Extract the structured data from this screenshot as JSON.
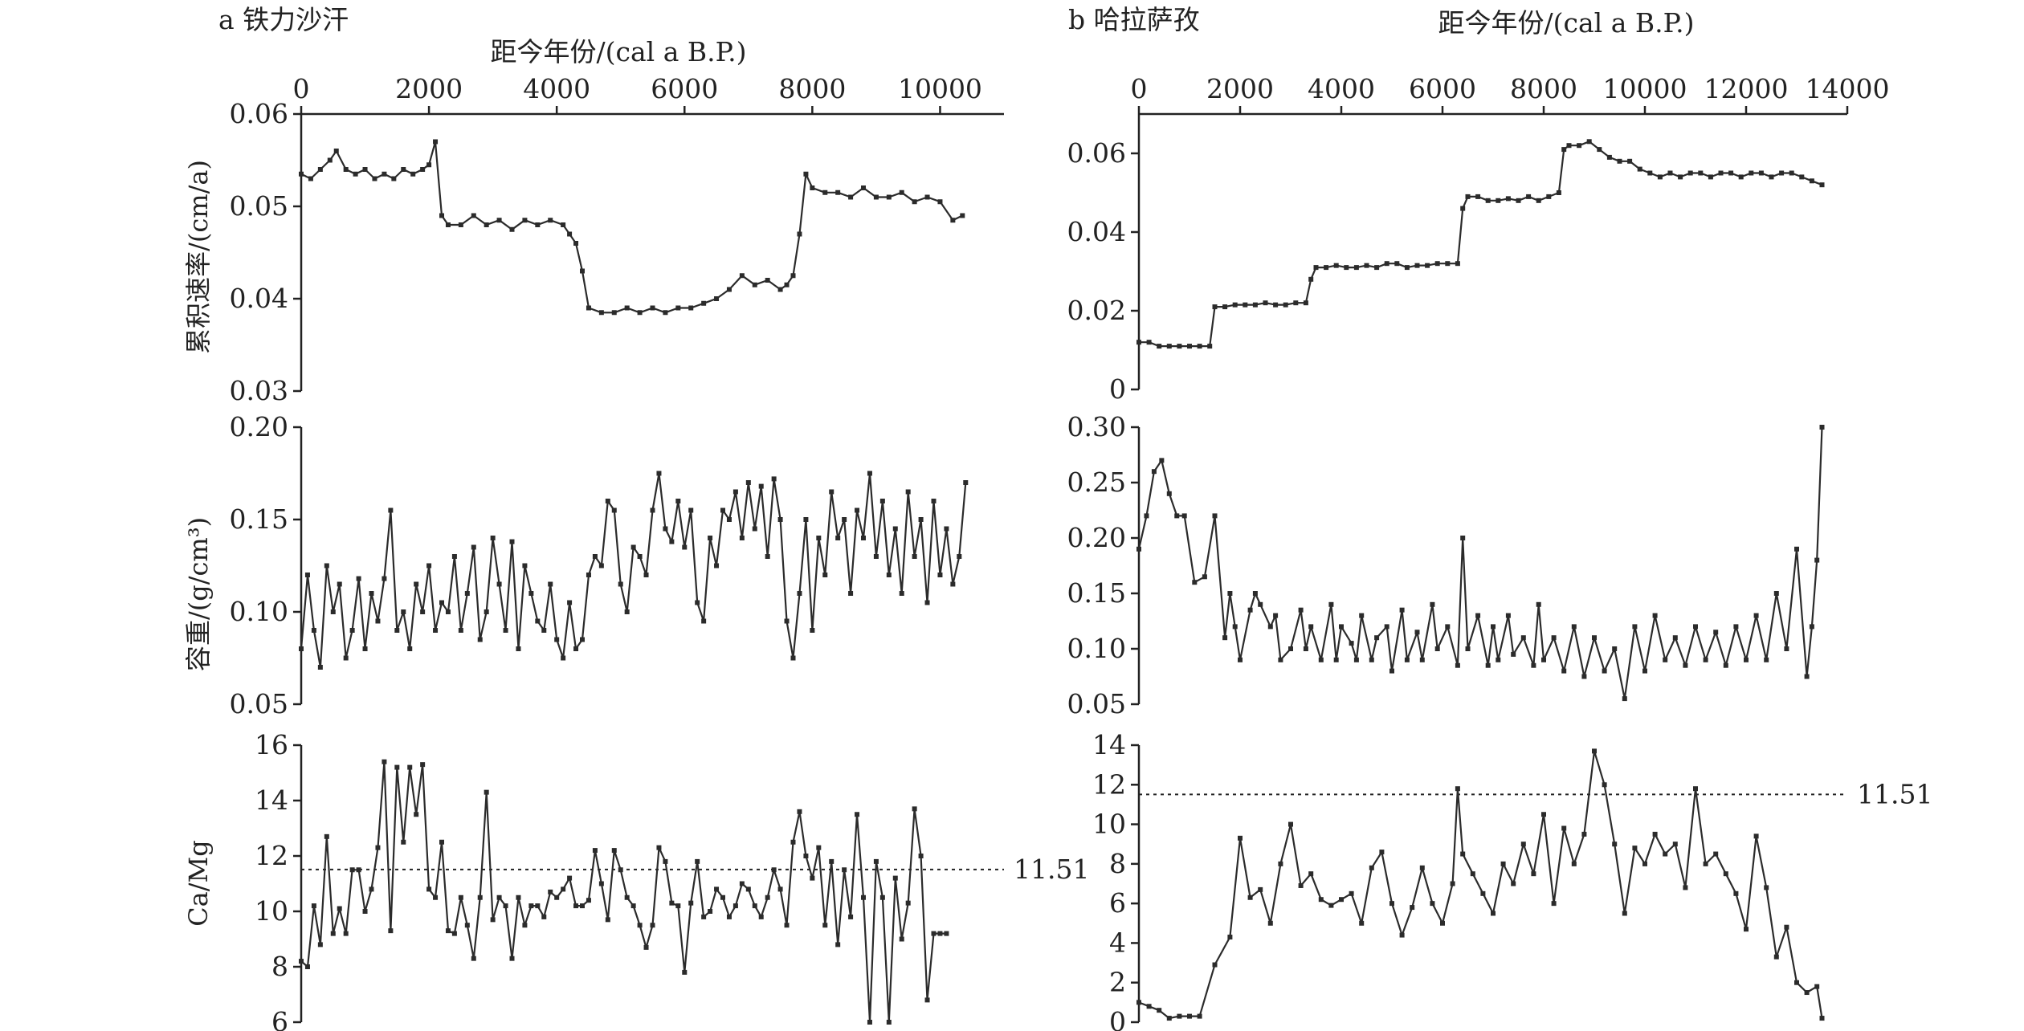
{
  "figure": {
    "panel_a_title": "a 铁力沙汗",
    "panel_b_title": "b 哈拉萨孜",
    "xlabel": "距今年份/(cal a B.P.)",
    "ylabels": [
      "累积速率/(cm/a)",
      "容重/(g/cm³)",
      "Ca/Mg"
    ],
    "line_color": "#2b2b2b"
  },
  "chart_data": [
    {
      "id": "a1",
      "type": "line",
      "panel": "a",
      "row": 1,
      "xlim": [
        0,
        11000
      ],
      "xticks": [
        0,
        2000,
        4000,
        6000,
        8000,
        10000
      ],
      "ylim": [
        0.03,
        0.06
      ],
      "yticks": [
        0.03,
        0.04,
        0.05,
        0.06
      ],
      "ytick_labels": [
        "0.03",
        "0.04",
        "0.05",
        "0.06"
      ],
      "x": [
        0,
        150,
        300,
        450,
        550,
        700,
        850,
        1000,
        1150,
        1300,
        1450,
        1600,
        1750,
        1900,
        2000,
        2100,
        2200,
        2300,
        2500,
        2700,
        2900,
        3100,
        3300,
        3500,
        3700,
        3900,
        4100,
        4200,
        4300,
        4400,
        4500,
        4700,
        4900,
        5100,
        5300,
        5500,
        5700,
        5900,
        6100,
        6300,
        6500,
        6700,
        6900,
        7100,
        7300,
        7500,
        7600,
        7700,
        7800,
        7900,
        8000,
        8200,
        8400,
        8600,
        8800,
        9000,
        9200,
        9400,
        9600,
        9800,
        10000,
        10200,
        10350
      ],
      "y": [
        0.0535,
        0.053,
        0.054,
        0.055,
        0.056,
        0.054,
        0.0535,
        0.054,
        0.053,
        0.0535,
        0.053,
        0.054,
        0.0535,
        0.054,
        0.0545,
        0.057,
        0.049,
        0.048,
        0.048,
        0.049,
        0.048,
        0.0485,
        0.0475,
        0.0485,
        0.048,
        0.0485,
        0.048,
        0.047,
        0.046,
        0.043,
        0.039,
        0.0385,
        0.0385,
        0.039,
        0.0385,
        0.039,
        0.0385,
        0.039,
        0.039,
        0.0395,
        0.04,
        0.041,
        0.0425,
        0.0415,
        0.042,
        0.041,
        0.0415,
        0.0425,
        0.047,
        0.0535,
        0.052,
        0.0515,
        0.0515,
        0.051,
        0.052,
        0.051,
        0.051,
        0.0515,
        0.0505,
        0.051,
        0.0505,
        0.0485,
        0.049
      ]
    },
    {
      "id": "a2",
      "type": "line",
      "panel": "a",
      "row": 2,
      "xlim": [
        0,
        11000
      ],
      "ylim": [
        0.05,
        0.2
      ],
      "yticks": [
        0.05,
        0.1,
        0.15,
        0.2
      ],
      "ytick_labels": [
        "0.05",
        "0.10",
        "0.15",
        "0.20"
      ],
      "x": [
        0,
        100,
        200,
        300,
        400,
        500,
        600,
        700,
        800,
        900,
        1000,
        1100,
        1200,
        1300,
        1400,
        1500,
        1600,
        1700,
        1800,
        1900,
        2000,
        2100,
        2200,
        2300,
        2400,
        2500,
        2600,
        2700,
        2800,
        2900,
        3000,
        3100,
        3200,
        3300,
        3400,
        3500,
        3600,
        3700,
        3800,
        3900,
        4000,
        4100,
        4200,
        4300,
        4400,
        4500,
        4600,
        4700,
        4800,
        4900,
        5000,
        5100,
        5200,
        5300,
        5400,
        5500,
        5600,
        5700,
        5800,
        5900,
        6000,
        6100,
        6200,
        6300,
        6400,
        6500,
        6600,
        6700,
        6800,
        6900,
        7000,
        7100,
        7200,
        7300,
        7400,
        7500,
        7600,
        7700,
        7800,
        7900,
        8000,
        8100,
        8200,
        8300,
        8400,
        8500,
        8600,
        8700,
        8800,
        8900,
        9000,
        9100,
        9200,
        9300,
        9400,
        9500,
        9600,
        9700,
        9800,
        9900,
        10000,
        10100,
        10200,
        10300,
        10400
      ],
      "y": [
        0.08,
        0.12,
        0.09,
        0.07,
        0.125,
        0.1,
        0.115,
        0.075,
        0.09,
        0.118,
        0.08,
        0.11,
        0.095,
        0.118,
        0.155,
        0.09,
        0.1,
        0.08,
        0.115,
        0.1,
        0.125,
        0.09,
        0.105,
        0.1,
        0.13,
        0.09,
        0.11,
        0.135,
        0.085,
        0.1,
        0.14,
        0.115,
        0.09,
        0.138,
        0.08,
        0.125,
        0.11,
        0.095,
        0.09,
        0.115,
        0.085,
        0.075,
        0.105,
        0.08,
        0.085,
        0.12,
        0.13,
        0.125,
        0.16,
        0.155,
        0.115,
        0.1,
        0.135,
        0.13,
        0.12,
        0.155,
        0.175,
        0.145,
        0.138,
        0.16,
        0.135,
        0.155,
        0.105,
        0.095,
        0.14,
        0.125,
        0.155,
        0.15,
        0.165,
        0.14,
        0.17,
        0.145,
        0.168,
        0.13,
        0.172,
        0.15,
        0.095,
        0.075,
        0.11,
        0.15,
        0.09,
        0.14,
        0.12,
        0.165,
        0.14,
        0.15,
        0.11,
        0.155,
        0.14,
        0.175,
        0.13,
        0.16,
        0.12,
        0.145,
        0.11,
        0.165,
        0.13,
        0.15,
        0.105,
        0.16,
        0.12,
        0.145,
        0.115,
        0.13,
        0.17
      ]
    },
    {
      "id": "a3",
      "type": "line",
      "panel": "a",
      "row": 3,
      "xlim": [
        0,
        11000
      ],
      "ylim": [
        6,
        16
      ],
      "yticks": [
        6,
        8,
        10,
        12,
        14,
        16
      ],
      "ytick_labels": [
        "6",
        "8",
        "10",
        "12",
        "14",
        "16"
      ],
      "reference_line": 11.51,
      "reference_label": "11.51",
      "x": [
        0,
        100,
        200,
        300,
        400,
        500,
        600,
        700,
        800,
        900,
        1000,
        1100,
        1200,
        1300,
        1400,
        1500,
        1600,
        1700,
        1800,
        1900,
        2000,
        2100,
        2200,
        2300,
        2400,
        2500,
        2600,
        2700,
        2800,
        2900,
        3000,
        3100,
        3200,
        3300,
        3400,
        3500,
        3600,
        3700,
        3800,
        3900,
        4000,
        4100,
        4200,
        4300,
        4400,
        4500,
        4600,
        4700,
        4800,
        4900,
        5000,
        5100,
        5200,
        5300,
        5400,
        5500,
        5600,
        5700,
        5800,
        5900,
        6000,
        6100,
        6200,
        6300,
        6400,
        6500,
        6600,
        6700,
        6800,
        6900,
        7000,
        7100,
        7200,
        7300,
        7400,
        7500,
        7600,
        7700,
        7800,
        7900,
        8000,
        8100,
        8200,
        8300,
        8400,
        8500,
        8600,
        8700,
        8800,
        8900,
        9000,
        9100,
        9200,
        9300,
        9400,
        9500,
        9600,
        9700,
        9800,
        9900,
        10000,
        10100,
        10200,
        10300,
        10400
      ],
      "y": [
        8.2,
        8.0,
        10.2,
        8.8,
        12.7,
        9.2,
        10.1,
        9.2,
        11.5,
        11.5,
        10.0,
        10.8,
        12.3,
        15.4,
        9.3,
        15.2,
        12.5,
        15.2,
        13.5,
        15.3,
        10.8,
        10.5,
        12.5,
        9.3,
        9.2,
        10.5,
        9.5,
        8.3,
        10.5,
        14.3,
        9.7,
        10.5,
        10.2,
        8.3,
        10.5,
        9.5,
        10.2,
        10.2,
        9.8,
        10.7,
        10.5,
        10.8,
        11.2,
        10.2,
        10.2,
        10.4,
        12.2,
        11.0,
        9.7,
        12.2,
        11.5,
        10.5,
        10.2,
        9.5,
        8.7,
        9.5,
        12.3,
        11.8,
        10.3,
        10.2,
        7.8,
        10.3,
        11.8,
        9.8,
        10.0,
        10.8,
        10.5,
        9.8,
        10.2,
        11.0,
        10.8,
        10.2,
        9.8,
        10.5,
        11.5,
        10.8,
        9.5,
        12.5,
        13.6,
        12.0,
        11.2,
        12.3,
        9.5,
        11.8,
        8.8,
        11.5,
        9.8,
        13.5,
        10.5,
        6.0,
        11.8,
        10.5,
        6.0,
        11.2,
        9.0,
        10.3,
        13.7,
        12.0,
        6.8,
        9.2,
        9.2,
        9.2,
        9.2,
        9.2,
        9.2
      ],
      "x_trim": 102
    },
    {
      "id": "b1",
      "type": "line",
      "panel": "b",
      "row": 1,
      "xlim": [
        0,
        14000
      ],
      "xticks": [
        0,
        2000,
        4000,
        6000,
        8000,
        10000,
        12000,
        14000
      ],
      "ylim": [
        0,
        0.07
      ],
      "yticks": [
        0,
        0.02,
        0.04,
        0.06
      ],
      "ytick_labels": [
        "0",
        "0.02",
        "0.04",
        "0.06"
      ],
      "x": [
        0,
        200,
        400,
        600,
        800,
        1000,
        1200,
        1400,
        1500,
        1700,
        1900,
        2100,
        2300,
        2500,
        2700,
        2900,
        3100,
        3300,
        3400,
        3500,
        3700,
        3900,
        4100,
        4300,
        4500,
        4700,
        4900,
        5100,
        5300,
        5500,
        5700,
        5900,
        6100,
        6300,
        6400,
        6500,
        6700,
        6900,
        7100,
        7300,
        7500,
        7700,
        7900,
        8100,
        8300,
        8400,
        8500,
        8700,
        8900,
        9100,
        9300,
        9500,
        9700,
        9900,
        10100,
        10300,
        10500,
        10700,
        10900,
        11100,
        11300,
        11500,
        11700,
        11900,
        12100,
        12300,
        12500,
        12700,
        12900,
        13100,
        13300,
        13500
      ],
      "y": [
        0.012,
        0.012,
        0.011,
        0.011,
        0.011,
        0.011,
        0.011,
        0.011,
        0.021,
        0.021,
        0.0215,
        0.0215,
        0.0215,
        0.022,
        0.0215,
        0.0215,
        0.022,
        0.022,
        0.028,
        0.031,
        0.031,
        0.0315,
        0.031,
        0.031,
        0.0315,
        0.031,
        0.032,
        0.032,
        0.031,
        0.0315,
        0.0315,
        0.032,
        0.032,
        0.032,
        0.046,
        0.049,
        0.049,
        0.048,
        0.048,
        0.0485,
        0.048,
        0.049,
        0.048,
        0.049,
        0.05,
        0.061,
        0.062,
        0.062,
        0.063,
        0.061,
        0.059,
        0.058,
        0.058,
        0.056,
        0.055,
        0.054,
        0.055,
        0.054,
        0.055,
        0.055,
        0.054,
        0.055,
        0.055,
        0.054,
        0.055,
        0.055,
        0.054,
        0.055,
        0.055,
        0.054,
        0.053,
        0.052
      ]
    },
    {
      "id": "b2",
      "type": "line",
      "panel": "b",
      "row": 2,
      "xlim": [
        0,
        14000
      ],
      "ylim": [
        0.05,
        0.3
      ],
      "yticks": [
        0.05,
        0.1,
        0.15,
        0.2,
        0.25,
        0.3
      ],
      "ytick_labels": [
        "0.05",
        "0.10",
        "0.15",
        "0.20",
        "0.25",
        "0.30"
      ],
      "x": [
        0,
        150,
        300,
        450,
        600,
        750,
        900,
        1100,
        1300,
        1500,
        1700,
        1800,
        1900,
        2000,
        2200,
        2300,
        2400,
        2600,
        2700,
        2800,
        3000,
        3200,
        3300,
        3400,
        3600,
        3800,
        3900,
        4000,
        4200,
        4300,
        4400,
        4600,
        4700,
        4900,
        5000,
        5200,
        5300,
        5500,
        5600,
        5800,
        5900,
        6100,
        6300,
        6400,
        6500,
        6700,
        6900,
        7000,
        7100,
        7300,
        7400,
        7600,
        7800,
        7900,
        8000,
        8200,
        8400,
        8600,
        8800,
        9000,
        9200,
        9400,
        9600,
        9800,
        10000,
        10200,
        10400,
        10600,
        10800,
        11000,
        11200,
        11400,
        11600,
        11800,
        12000,
        12200,
        12400,
        12600,
        12800,
        13000,
        13200,
        13300,
        13400,
        13500
      ],
      "y": [
        0.19,
        0.22,
        0.26,
        0.27,
        0.24,
        0.22,
        0.22,
        0.16,
        0.165,
        0.22,
        0.11,
        0.15,
        0.12,
        0.09,
        0.135,
        0.15,
        0.14,
        0.12,
        0.13,
        0.09,
        0.1,
        0.135,
        0.1,
        0.12,
        0.09,
        0.14,
        0.09,
        0.12,
        0.105,
        0.09,
        0.13,
        0.09,
        0.11,
        0.12,
        0.08,
        0.135,
        0.09,
        0.115,
        0.09,
        0.14,
        0.1,
        0.12,
        0.085,
        0.2,
        0.1,
        0.13,
        0.085,
        0.12,
        0.09,
        0.13,
        0.095,
        0.11,
        0.085,
        0.14,
        0.09,
        0.11,
        0.08,
        0.12,
        0.075,
        0.11,
        0.08,
        0.1,
        0.055,
        0.12,
        0.08,
        0.13,
        0.09,
        0.11,
        0.085,
        0.12,
        0.09,
        0.115,
        0.085,
        0.12,
        0.09,
        0.13,
        0.09,
        0.15,
        0.1,
        0.19,
        0.075,
        0.12,
        0.18,
        0.3
      ]
    },
    {
      "id": "b3",
      "type": "line",
      "panel": "b",
      "row": 3,
      "xlim": [
        0,
        14000
      ],
      "ylim": [
        0,
        14
      ],
      "yticks": [
        0,
        2,
        4,
        6,
        8,
        10,
        12,
        14
      ],
      "ytick_labels": [
        "0",
        "2",
        "4",
        "6",
        "8",
        "10",
        "12",
        "14"
      ],
      "reference_line": 11.51,
      "reference_label": "11.51",
      "x": [
        0,
        200,
        400,
        600,
        800,
        1000,
        1200,
        1500,
        1800,
        2000,
        2200,
        2400,
        2600,
        2800,
        3000,
        3200,
        3400,
        3600,
        3800,
        4000,
        4200,
        4400,
        4600,
        4800,
        5000,
        5200,
        5400,
        5600,
        5800,
        6000,
        6200,
        6300,
        6400,
        6600,
        6800,
        7000,
        7200,
        7400,
        7600,
        7800,
        8000,
        8200,
        8400,
        8600,
        8800,
        9000,
        9200,
        9400,
        9600,
        9800,
        10000,
        10200,
        10400,
        10600,
        10800,
        11000,
        11200,
        11400,
        11600,
        11800,
        12000,
        12200,
        12400,
        12600,
        12800,
        13000,
        13200,
        13400,
        13500
      ],
      "y": [
        1.0,
        0.8,
        0.6,
        0.2,
        0.3,
        0.3,
        0.3,
        2.9,
        4.3,
        9.3,
        6.3,
        6.7,
        5.0,
        8.0,
        10.0,
        6.9,
        7.5,
        6.2,
        5.9,
        6.2,
        6.5,
        5.0,
        7.8,
        8.6,
        6.0,
        4.4,
        5.8,
        7.8,
        6.0,
        5.0,
        7.0,
        11.8,
        8.5,
        7.5,
        6.5,
        5.5,
        8.0,
        7.0,
        9.0,
        7.5,
        10.5,
        6.0,
        9.8,
        8.0,
        9.5,
        13.7,
        12.0,
        9.0,
        5.5,
        8.8,
        8.0,
        9.5,
        8.5,
        9.0,
        6.8,
        11.8,
        8.0,
        8.5,
        7.5,
        6.5,
        4.7,
        9.4,
        6.8,
        3.3,
        4.8,
        2.0,
        1.5,
        1.8,
        0.2
      ]
    }
  ]
}
